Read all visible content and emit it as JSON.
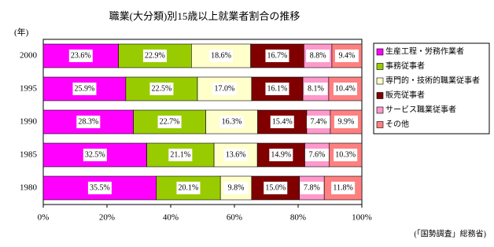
{
  "chart_data": {
    "type": "stacked-bar-horizontal",
    "title": "職業(大分類)別15歳以上就業者割合の推移",
    "y_axis_label": "(年)",
    "source": "(「国勢調査」総務省)",
    "categories": [
      "2000",
      "1995",
      "1990",
      "1985",
      "1980"
    ],
    "series": [
      {
        "name": "生産工程・労務作業者",
        "color": "#ff00ff",
        "values": [
          23.6,
          25.9,
          28.3,
          32.5,
          35.5
        ],
        "value_labels": [
          "23.6%",
          "25.9%",
          "28.3%",
          "32.5%",
          "35.5%"
        ]
      },
      {
        "name": "事務従事者",
        "color": "#99cc00",
        "values": [
          22.9,
          22.5,
          22.7,
          21.1,
          20.1
        ],
        "value_labels": [
          "22.9%",
          "22.5%",
          "22.7%",
          "21.1%",
          "20.1%"
        ]
      },
      {
        "name": "専門的・技術的職業従事者",
        "color": "#ffffcc",
        "values": [
          18.6,
          17.0,
          16.3,
          13.6,
          9.8
        ],
        "value_labels": [
          "18.6%",
          "17.0%",
          "16.3%",
          "13.6%",
          "9.8%"
        ]
      },
      {
        "name": "販売従事者",
        "color": "#800000",
        "values": [
          16.7,
          16.1,
          15.4,
          14.9,
          15.0
        ],
        "value_labels": [
          "16.7%",
          "16.1%",
          "15.4%",
          "14.9%",
          "15.0%"
        ]
      },
      {
        "name": "サービス職業従事者",
        "color": "#ff99cc",
        "values": [
          8.8,
          8.1,
          7.4,
          7.6,
          7.8
        ],
        "value_labels": [
          "8.8%",
          "8.1%",
          "7.4%",
          "7.6%",
          "7.8%"
        ]
      },
      {
        "name": "その他",
        "color": "#ff8080",
        "values": [
          9.4,
          10.4,
          9.9,
          10.3,
          11.8
        ],
        "value_labels": [
          "9.4%",
          "10.4%",
          "9.9%",
          "10.3%",
          "11.8%"
        ]
      }
    ],
    "xlim": [
      0,
      100
    ],
    "xticks": [
      {
        "value": 0,
        "label": "0%"
      },
      {
        "value": 20,
        "label": "20%"
      },
      {
        "value": 40,
        "label": "40%"
      },
      {
        "value": 60,
        "label": "60%"
      },
      {
        "value": 80,
        "label": "80%"
      },
      {
        "value": 100,
        "label": "100%"
      }
    ],
    "grid": false,
    "legend": "right"
  }
}
